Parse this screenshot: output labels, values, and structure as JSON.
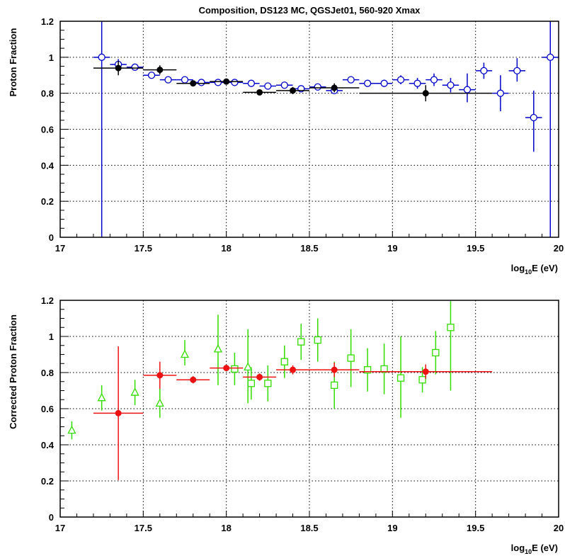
{
  "chart_data": [
    {
      "type": "scatter",
      "title": "Composition, DS123 MC, QGSJet01, 560-920 Xmax",
      "xlabel": {
        "prefix": "log",
        "sub": "10",
        "suffix": "E (eV)"
      },
      "ylabel": "Proton Fraction",
      "xlim": [
        17,
        20
      ],
      "ylim": [
        0,
        1.2
      ],
      "xticks": [
        "17",
        "17.5",
        "18",
        "18.5",
        "19",
        "19.5",
        "20"
      ],
      "yticks": [
        "0",
        "0.2",
        "0.4",
        "0.6",
        "0.8",
        "1",
        "1.2"
      ],
      "grid": true,
      "series": [
        {
          "marker": "open-circle",
          "color": "#0000cc",
          "points": [
            {
              "x": 17.25,
              "y": 1.0,
              "xerr": 0.05,
              "yerr_lo": 1.2,
              "yerr_hi": 0.2
            },
            {
              "x": 17.35,
              "y": 0.96,
              "xerr": 0.05,
              "yerr_lo": 0.03,
              "yerr_hi": 0.03
            },
            {
              "x": 17.45,
              "y": 0.945,
              "xerr": 0.05,
              "yerr_lo": 0.01,
              "yerr_hi": 0.01
            },
            {
              "x": 17.55,
              "y": 0.9,
              "xerr": 0.05,
              "yerr_lo": 0.01,
              "yerr_hi": 0.01
            },
            {
              "x": 17.65,
              "y": 0.875,
              "xerr": 0.05,
              "yerr_lo": 0.01,
              "yerr_hi": 0.01
            },
            {
              "x": 17.75,
              "y": 0.875,
              "xerr": 0.05,
              "yerr_lo": 0.01,
              "yerr_hi": 0.01
            },
            {
              "x": 17.85,
              "y": 0.86,
              "xerr": 0.05,
              "yerr_lo": 0.01,
              "yerr_hi": 0.01
            },
            {
              "x": 17.95,
              "y": 0.86,
              "xerr": 0.05,
              "yerr_lo": 0.01,
              "yerr_hi": 0.01
            },
            {
              "x": 18.05,
              "y": 0.86,
              "xerr": 0.05,
              "yerr_lo": 0.01,
              "yerr_hi": 0.01
            },
            {
              "x": 18.15,
              "y": 0.855,
              "xerr": 0.05,
              "yerr_lo": 0.01,
              "yerr_hi": 0.01
            },
            {
              "x": 18.25,
              "y": 0.84,
              "xerr": 0.05,
              "yerr_lo": 0.01,
              "yerr_hi": 0.01
            },
            {
              "x": 18.35,
              "y": 0.845,
              "xerr": 0.05,
              "yerr_lo": 0.01,
              "yerr_hi": 0.01
            },
            {
              "x": 18.45,
              "y": 0.825,
              "xerr": 0.05,
              "yerr_lo": 0.01,
              "yerr_hi": 0.01
            },
            {
              "x": 18.55,
              "y": 0.835,
              "xerr": 0.05,
              "yerr_lo": 0.01,
              "yerr_hi": 0.01
            },
            {
              "x": 18.65,
              "y": 0.815,
              "xerr": 0.05,
              "yerr_lo": 0.02,
              "yerr_hi": 0.02
            },
            {
              "x": 18.75,
              "y": 0.875,
              "xerr": 0.05,
              "yerr_lo": 0.01,
              "yerr_hi": 0.01
            },
            {
              "x": 18.85,
              "y": 0.855,
              "xerr": 0.05,
              "yerr_lo": 0.01,
              "yerr_hi": 0.01
            },
            {
              "x": 18.95,
              "y": 0.855,
              "xerr": 0.05,
              "yerr_lo": 0.02,
              "yerr_hi": 0.02
            },
            {
              "x": 19.05,
              "y": 0.875,
              "xerr": 0.05,
              "yerr_lo": 0.025,
              "yerr_hi": 0.025
            },
            {
              "x": 19.15,
              "y": 0.855,
              "xerr": 0.05,
              "yerr_lo": 0.03,
              "yerr_hi": 0.03
            },
            {
              "x": 19.25,
              "y": 0.875,
              "xerr": 0.05,
              "yerr_lo": 0.035,
              "yerr_hi": 0.035
            },
            {
              "x": 19.35,
              "y": 0.845,
              "xerr": 0.05,
              "yerr_lo": 0.04,
              "yerr_hi": 0.04
            },
            {
              "x": 19.45,
              "y": 0.82,
              "xerr": 0.05,
              "yerr_lo": 0.07,
              "yerr_hi": 0.09
            },
            {
              "x": 19.55,
              "y": 0.925,
              "xerr": 0.05,
              "yerr_lo": 0.045,
              "yerr_hi": 0.045
            },
            {
              "x": 19.65,
              "y": 0.8,
              "xerr": 0.05,
              "yerr_lo": 0.1,
              "yerr_hi": 0.1
            },
            {
              "x": 19.75,
              "y": 0.925,
              "xerr": 0.05,
              "yerr_lo": 0.06,
              "yerr_hi": 0.07
            },
            {
              "x": 19.85,
              "y": 0.665,
              "xerr": 0.05,
              "yerr_lo": 0.19,
              "yerr_hi": 0.15
            },
            {
              "x": 19.95,
              "y": 1.0,
              "xerr": 0.05,
              "yerr_lo": 1.2,
              "yerr_hi": 0.2
            }
          ]
        },
        {
          "marker": "filled-circle",
          "color": "#000000",
          "points": [
            {
              "x": 17.35,
              "y": 0.94,
              "xerr": 0.15,
              "yerr_lo": 0.04,
              "yerr_hi": 0.04
            },
            {
              "x": 17.6,
              "y": 0.93,
              "xerr": 0.1,
              "yerr_lo": 0.025,
              "yerr_hi": 0.025
            },
            {
              "x": 17.8,
              "y": 0.855,
              "xerr": 0.1,
              "yerr_lo": 0.01,
              "yerr_hi": 0.01
            },
            {
              "x": 18.0,
              "y": 0.865,
              "xerr": 0.1,
              "yerr_lo": 0.01,
              "yerr_hi": 0.01
            },
            {
              "x": 18.2,
              "y": 0.805,
              "xerr": 0.1,
              "yerr_lo": 0.015,
              "yerr_hi": 0.015
            },
            {
              "x": 18.4,
              "y": 0.815,
              "xerr": 0.1,
              "yerr_lo": 0.02,
              "yerr_hi": 0.02
            },
            {
              "x": 18.65,
              "y": 0.83,
              "xerr": 0.15,
              "yerr_lo": 0.025,
              "yerr_hi": 0.025
            },
            {
              "x": 19.2,
              "y": 0.8,
              "xerr": 0.4,
              "yerr_lo": 0.045,
              "yerr_hi": 0.045
            }
          ]
        }
      ]
    },
    {
      "type": "scatter",
      "title": "",
      "xlabel": {
        "prefix": "log",
        "sub": "10",
        "suffix": "E (eV)"
      },
      "ylabel": "Corrected Proton Fraction",
      "xlim": [
        17,
        20
      ],
      "ylim": [
        0,
        1.2
      ],
      "xticks": [
        "17",
        "17.5",
        "18",
        "18.5",
        "19",
        "19.5",
        "20"
      ],
      "yticks": [
        "0",
        "0.2",
        "0.4",
        "0.6",
        "0.8",
        "1",
        "1.2"
      ],
      "grid": true,
      "series": [
        {
          "marker": "open-triangle",
          "color": "#33dd00",
          "points": [
            {
              "x": 17.07,
              "y": 0.48,
              "xerr": 0,
              "yerr_lo": 0.05,
              "yerr_hi": 0.05
            },
            {
              "x": 17.25,
              "y": 0.66,
              "xerr": 0,
              "yerr_lo": 0.07,
              "yerr_hi": 0.07
            },
            {
              "x": 17.45,
              "y": 0.69,
              "xerr": 0,
              "yerr_lo": 0.07,
              "yerr_hi": 0.07
            },
            {
              "x": 17.6,
              "y": 0.63,
              "xerr": 0,
              "yerr_lo": 0.08,
              "yerr_hi": 0.08
            },
            {
              "x": 17.75,
              "y": 0.9,
              "xerr": 0,
              "yerr_lo": 0.06,
              "yerr_hi": 0.08
            },
            {
              "x": 17.95,
              "y": 0.93,
              "xerr": 0,
              "yerr_lo": 0.2,
              "yerr_hi": 0.19
            },
            {
              "x": 18.13,
              "y": 0.83,
              "xerr": 0,
              "yerr_lo": 0.2,
              "yerr_hi": 0.21
            }
          ]
        },
        {
          "marker": "open-square",
          "color": "#33dd00",
          "points": [
            {
              "x": 18.05,
              "y": 0.82,
              "xerr": 0,
              "yerr_lo": 0.09,
              "yerr_hi": 0.09
            },
            {
              "x": 18.15,
              "y": 0.74,
              "xerr": 0,
              "yerr_lo": 0.09,
              "yerr_hi": 0.09
            },
            {
              "x": 18.25,
              "y": 0.74,
              "xerr": 0,
              "yerr_lo": 0.1,
              "yerr_hi": 0.1
            },
            {
              "x": 18.35,
              "y": 0.86,
              "xerr": 0,
              "yerr_lo": 0.09,
              "yerr_hi": 0.09
            },
            {
              "x": 18.45,
              "y": 0.97,
              "xerr": 0,
              "yerr_lo": 0.1,
              "yerr_hi": 0.1
            },
            {
              "x": 18.55,
              "y": 0.98,
              "xerr": 0,
              "yerr_lo": 0.12,
              "yerr_hi": 0.12
            },
            {
              "x": 18.65,
              "y": 0.73,
              "xerr": 0,
              "yerr_lo": 0.13,
              "yerr_hi": 0.13
            },
            {
              "x": 18.75,
              "y": 0.88,
              "xerr": 0,
              "yerr_lo": 0.16,
              "yerr_hi": 0.16
            },
            {
              "x": 18.85,
              "y": 0.815,
              "xerr": 0,
              "yerr_lo": 0.12,
              "yerr_hi": 0.12
            },
            {
              "x": 18.95,
              "y": 0.82,
              "xerr": 0,
              "yerr_lo": 0.14,
              "yerr_hi": 0.14
            },
            {
              "x": 19.05,
              "y": 0.77,
              "xerr": 0,
              "yerr_lo": 0.22,
              "yerr_hi": 0.23
            },
            {
              "x": 19.18,
              "y": 0.76,
              "xerr": 0,
              "yerr_lo": 0.07,
              "yerr_hi": 0.07
            },
            {
              "x": 19.26,
              "y": 0.91,
              "xerr": 0,
              "yerr_lo": 0.12,
              "yerr_hi": 0.12
            },
            {
              "x": 19.35,
              "y": 1.05,
              "xerr": 0,
              "yerr_lo": 0.35,
              "yerr_hi": 0.15
            }
          ]
        },
        {
          "marker": "filled-circle",
          "color": "#ee1111",
          "points": [
            {
              "x": 17.35,
              "y": 0.575,
              "xerr": 0.15,
              "yerr_lo": 0.37,
              "yerr_hi": 0.37
            },
            {
              "x": 17.6,
              "y": 0.785,
              "xerr": 0.1,
              "yerr_lo": 0.075,
              "yerr_hi": 0.075
            },
            {
              "x": 17.8,
              "y": 0.76,
              "xerr": 0.1,
              "yerr_lo": 0.02,
              "yerr_hi": 0.02
            },
            {
              "x": 18.0,
              "y": 0.825,
              "xerr": 0.1,
              "yerr_lo": 0.015,
              "yerr_hi": 0.015
            },
            {
              "x": 18.2,
              "y": 0.775,
              "xerr": 0.1,
              "yerr_lo": 0.02,
              "yerr_hi": 0.02
            },
            {
              "x": 18.4,
              "y": 0.815,
              "xerr": 0.1,
              "yerr_lo": 0.025,
              "yerr_hi": 0.025
            },
            {
              "x": 18.65,
              "y": 0.815,
              "xerr": 0.15,
              "yerr_lo": 0.04,
              "yerr_hi": 0.04
            },
            {
              "x": 19.2,
              "y": 0.805,
              "xerr": 0.4,
              "yerr_lo": 0.04,
              "yerr_hi": 0.04
            }
          ]
        }
      ]
    }
  ]
}
